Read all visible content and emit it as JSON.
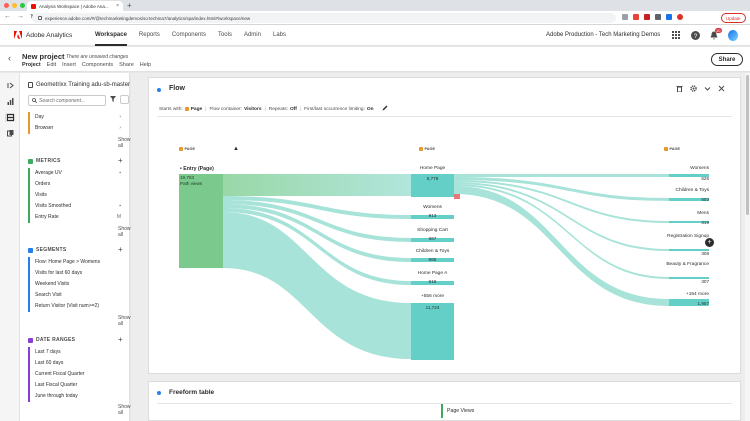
{
  "browser": {
    "tab_title": "Analysis Workspace | Adobe Ana...",
    "tab_close": "×",
    "new_tab": "+",
    "url": "experience.adobe.com/#/@techmarketingdemos/so:techma7/analytics/spa/index.html#/workspace/new",
    "update_label": "Update"
  },
  "app": {
    "brand": "Adobe Analytics",
    "nav": [
      "Workspace",
      "Reports",
      "Components",
      "Tools",
      "Admin",
      "Labs"
    ],
    "active_nav": "Workspace",
    "org": "Adobe Production - Tech Marketing Demos",
    "notification_count": "10"
  },
  "project": {
    "title": "New project",
    "status": "There are unsaved changes",
    "menu": [
      "Project",
      "Edit",
      "Insert",
      "Components",
      "Share",
      "Help"
    ],
    "share_label": "Share"
  },
  "panel": {
    "report_suite": "Geometrixx Training adu-sb-master",
    "search_placeholder": "Search component...",
    "dimension_items": [
      "Day",
      "Browser"
    ],
    "metrics_header": "METRICS",
    "metrics": [
      "Average UV",
      "Orders",
      "Visits",
      "Visits Smoothed",
      "Entry Rate"
    ],
    "segments_header": "SEGMENTS",
    "segments": [
      "Flow: Home Page > Womens",
      "Visits for last 60 days",
      "Weekend Visits",
      "Search Visit",
      "Return Visitor (Visit num>=2)"
    ],
    "date_ranges_header": "DATE RANGES",
    "date_ranges": [
      "Last 7 days",
      "Last 60 days",
      "Current Fiscal Quarter",
      "Last Fiscal Quarter",
      "June through today"
    ],
    "show_all": "Show all"
  },
  "flow": {
    "title": "Flow",
    "settings": {
      "starts_with_label": "Starts with:",
      "starts_with_value": "Page",
      "container_label": "Flow container:",
      "container_value": "Visitors",
      "repeats_label": "Repeats:",
      "repeats_value": "Off",
      "limiting_label": "First/last occurrence limiting:",
      "limiting_value": "On"
    },
    "column_header": "PAGE",
    "entry": {
      "label": "• Entry (Page)",
      "value": "19,763",
      "unit": "Path views"
    },
    "middle_nodes": [
      {
        "label": "Home Page",
        "value": "5,778"
      },
      {
        "label": "Womens",
        "value": "913"
      },
      {
        "label": "Shopping Cart",
        "value": "667"
      },
      {
        "label": "Children & Toys",
        "value": "665"
      },
      {
        "label": "Home Page A",
        "value": "616"
      },
      {
        "label": "+556 more",
        "value": "11,724"
      }
    ],
    "right_nodes": [
      {
        "label": "Womens",
        "value": "626"
      },
      {
        "label": "Children & Toys",
        "value": "603"
      },
      {
        "label": "Mens",
        "value": "319"
      },
      {
        "label": "Registration Signup",
        "value": "308"
      },
      {
        "label": "Beauty & Fragrance",
        "value": "307"
      },
      {
        "label": "+164 more",
        "value": "1,957"
      }
    ],
    "colors": {
      "entry": "#7cc98d",
      "node": "#63cfc6",
      "link": "#a7e3d8",
      "accent": "#e34850"
    }
  },
  "freeform": {
    "title": "Freeform table",
    "column": "Page Views"
  }
}
